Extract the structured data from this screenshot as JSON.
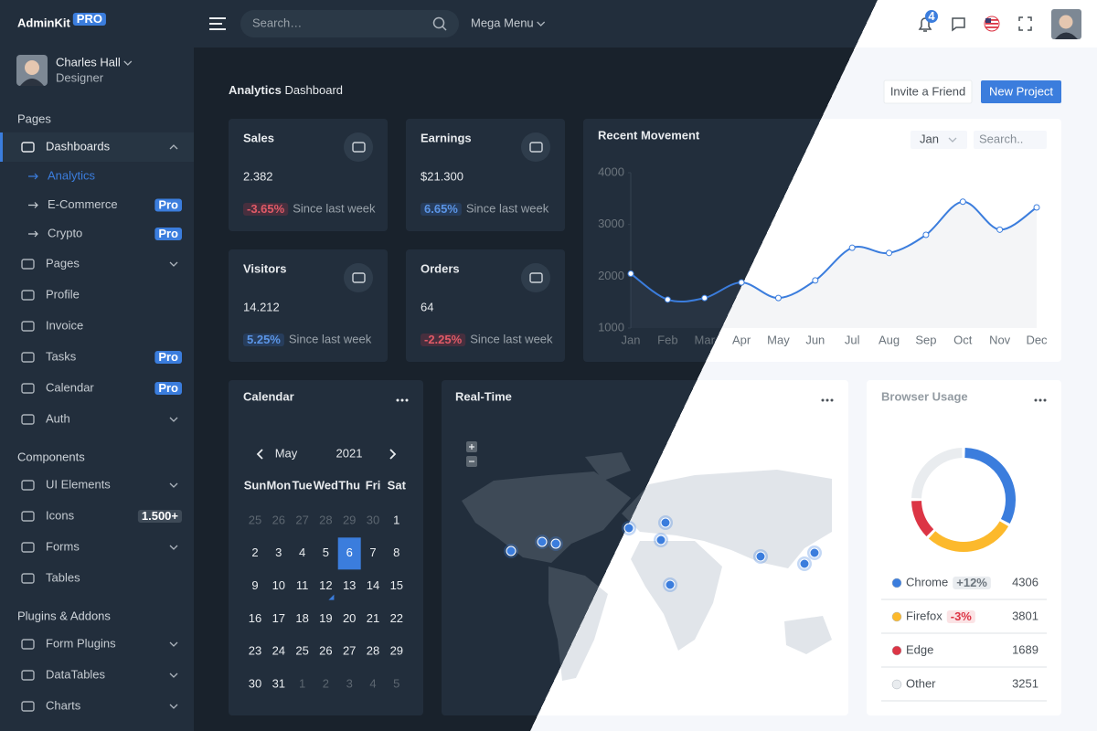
{
  "sidebar": {
    "brand": "AdminKit",
    "brand_badge": "PRO",
    "user": {
      "name": "Charles Hall",
      "role": "Designer"
    },
    "sections": [
      {
        "title": "Pages",
        "items": [
          {
            "label": "Dashboards",
            "expandable": true,
            "children": [
              {
                "label": "Analytics"
              },
              {
                "label": "E-Commerce",
                "badge": "Pro"
              },
              {
                "label": "Crypto",
                "badge": "Pro"
              }
            ]
          },
          {
            "label": "Pages",
            "expandable": true
          },
          {
            "label": "Profile"
          },
          {
            "label": "Invoice"
          },
          {
            "label": "Tasks",
            "badge": "Pro"
          },
          {
            "label": "Calendar",
            "badge": "Pro"
          },
          {
            "label": "Auth",
            "expandable": true
          }
        ]
      },
      {
        "title": "Components",
        "items": [
          {
            "label": "UI Elements",
            "expandable": true
          },
          {
            "label": "Icons",
            "badge": "1.500+"
          },
          {
            "label": "Forms",
            "expandable": true
          },
          {
            "label": "Tables"
          }
        ]
      },
      {
        "title": "Plugins & Addons",
        "items": [
          {
            "label": "Form Plugins",
            "expandable": true
          },
          {
            "label": "DataTables",
            "expandable": true
          },
          {
            "label": "Charts",
            "expandable": true
          }
        ]
      }
    ]
  },
  "topbar": {
    "search_placeholder": "Search…",
    "mega_menu": "Mega Menu",
    "notifications": "4"
  },
  "header": {
    "title_bold": "Analytics",
    "title": "Dashboard",
    "buttons": [
      "Invite a Friend",
      "New Project"
    ]
  },
  "stats": [
    {
      "title": "Sales",
      "value": "2.382",
      "change": "-3.65%",
      "note": "Since last week"
    },
    {
      "title": "Earnings",
      "value": "$21.300",
      "change": "6.65%",
      "note": "Since last week"
    },
    {
      "title": "Visitors",
      "value": "14.212",
      "change": "5.25%",
      "note": "Since last week"
    },
    {
      "title": "Orders",
      "value": "64",
      "change": "-2.25%",
      "note": "Since last week"
    }
  ],
  "calendar": {
    "title": "Calendar",
    "month": "May",
    "year": "2021",
    "weekdays": [
      "Sun",
      "Mon",
      "Tue",
      "Wed",
      "Thu",
      "Fri",
      "Sat"
    ],
    "weeks": [
      [
        25,
        26,
        27,
        28,
        29,
        30,
        1
      ],
      [
        2,
        3,
        4,
        5,
        6,
        7,
        8
      ],
      [
        9,
        10,
        11,
        12,
        13,
        14,
        15
      ],
      [
        16,
        17,
        18,
        19,
        20,
        21,
        22
      ],
      [
        23,
        24,
        25,
        26,
        27,
        28,
        29
      ],
      [
        30,
        31,
        1,
        2,
        3,
        4,
        5
      ]
    ]
  },
  "realtime": {
    "title": "Real-Time"
  },
  "chart_data": [
    {
      "type": "line",
      "title": "Recent Movement",
      "filter": "Jan",
      "search_placeholder": "Search..",
      "categories": [
        "Jan",
        "Feb",
        "Mar",
        "Apr",
        "May",
        "Jun",
        "Jul",
        "Aug",
        "Sep",
        "Oct",
        "Nov",
        "Dec"
      ],
      "values": [
        2050,
        1550,
        1580,
        1880,
        1580,
        1920,
        2550,
        2450,
        2800,
        3440,
        2900,
        3330
      ],
      "color": "#3b7ddd",
      "ylim": [
        1000,
        4000
      ],
      "yticks": [
        1000,
        2000,
        3000,
        4000
      ]
    },
    {
      "type": "pie",
      "title": "Browser Usage",
      "categories": [
        "Chrome",
        "Firefox",
        "Edge",
        "Other"
      ],
      "values": [
        4306,
        3801,
        1689,
        3251
      ],
      "colors": [
        "#3b7ddd",
        "#fcb92c",
        "#dc3545",
        "#e9ecef"
      ],
      "changes": [
        "+12%",
        "-3%",
        null,
        null
      ]
    }
  ]
}
